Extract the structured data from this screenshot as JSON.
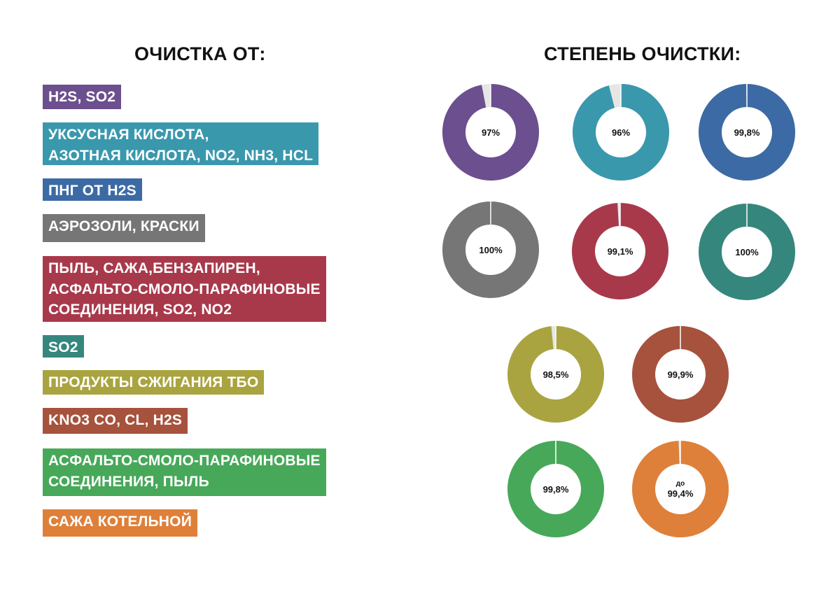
{
  "headings": {
    "left": "ОЧИСТКА ОТ:",
    "right": "СТЕПЕНЬ ОЧИСТКИ:"
  },
  "colors": {
    "purple": "#6c4f8e",
    "cyan": "#3a98ad",
    "blue": "#3c6aa4",
    "gray": "#767676",
    "crimson": "#a8394b",
    "teal": "#35877d",
    "olive": "#a9a43f",
    "rust": "#a6523c",
    "green": "#47a85a",
    "orange": "#de803a"
  },
  "chart_data": {
    "type": "pie",
    "variant": "donut",
    "items": [
      {
        "label": [
          "H2S, SO2"
        ],
        "value": 97,
        "value_text": "97%",
        "prefix": "",
        "color": "#6c4f8e"
      },
      {
        "label": [
          "УКСУСНАЯ КИСЛОТА,",
          "АЗОТНАЯ КИСЛОТА, NO2, NH3, HCL"
        ],
        "value": 96,
        "value_text": "96%",
        "prefix": "",
        "color": "#3a98ad"
      },
      {
        "label": [
          "ПНГ ОТ H2S"
        ],
        "value": 99.8,
        "value_text": "99,8%",
        "prefix": "",
        "color": "#3c6aa4"
      },
      {
        "label": [
          "АЭРОЗОЛИ, КРАСКИ"
        ],
        "value": 100,
        "value_text": "100%",
        "prefix": "",
        "color": "#767676"
      },
      {
        "label": [
          "ПЫЛЬ, САЖА,БЕНЗАПИРЕН,",
          "АСФАЛЬТО-СМОЛО-ПАРАФИНОВЫЕ",
          "СОЕДИНЕНИЯ, SO2, NO2"
        ],
        "value": 99.1,
        "value_text": "99,1%",
        "prefix": "",
        "color": "#a8394b"
      },
      {
        "label": [
          "SO2"
        ],
        "value": 100,
        "value_text": "100%",
        "prefix": "",
        "color": "#35877d"
      },
      {
        "label": [
          "ПРОДУКТЫ СЖИГАНИЯ ТБО"
        ],
        "value": 98.5,
        "value_text": "98,5%",
        "prefix": "",
        "color": "#a9a43f"
      },
      {
        "label": [
          "KNO3 CO, CL, H2S"
        ],
        "value": 99.9,
        "value_text": "99,9%",
        "prefix": "",
        "color": "#a6523c"
      },
      {
        "label": [
          "АСФАЛЬТО-СМОЛО-ПАРАФИНОВЫЕ",
          "СОЕДИНЕНИЯ, ПЫЛЬ"
        ],
        "value": 99.8,
        "value_text": "99,8%",
        "prefix": "",
        "color": "#47a85a"
      },
      {
        "label": [
          "САЖА КОТЕЛЬНОЙ"
        ],
        "value": 99.4,
        "value_text": "99,4%",
        "prefix": "до",
        "color": "#de803a"
      }
    ]
  }
}
